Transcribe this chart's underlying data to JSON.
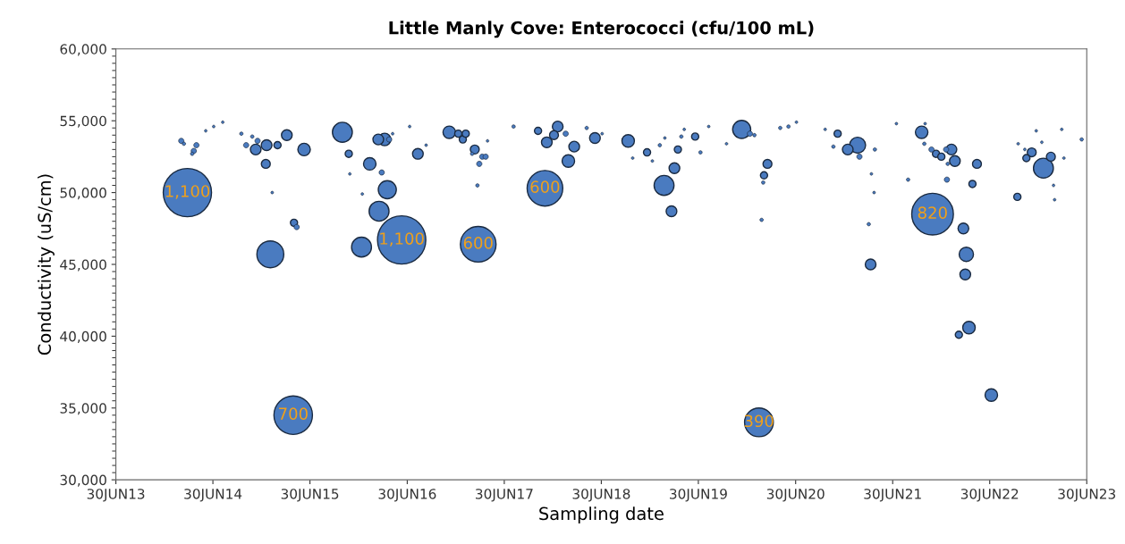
{
  "chart_data": {
    "type": "bubble",
    "title": "Little Manly Cove: Enterococci (cfu/100 mL)",
    "xlabel": "Sampling date",
    "ylabel": "Conductivity (uS/cm)",
    "xlim": [
      "2013-06-30",
      "2023-06-30"
    ],
    "xticks": [
      {
        "value": "2013-06-30",
        "label": "30JUN13"
      },
      {
        "value": "2014-06-30",
        "label": "30JUN14"
      },
      {
        "value": "2015-06-30",
        "label": "30JUN15"
      },
      {
        "value": "2016-06-30",
        "label": "30JUN16"
      },
      {
        "value": "2017-06-30",
        "label": "30JUN17"
      },
      {
        "value": "2018-06-30",
        "label": "30JUN18"
      },
      {
        "value": "2019-06-30",
        "label": "30JUN19"
      },
      {
        "value": "2020-06-30",
        "label": "30JUN20"
      },
      {
        "value": "2021-06-30",
        "label": "30JUN21"
      },
      {
        "value": "2022-06-30",
        "label": "30JUN22"
      },
      {
        "value": "2023-06-30",
        "label": "30JUN23"
      }
    ],
    "ylim": [
      30000,
      60000
    ],
    "yticks": [
      {
        "value": 30000,
        "label": "30,000"
      },
      {
        "value": 35000,
        "label": "35,000"
      },
      {
        "value": 40000,
        "label": "40,000"
      },
      {
        "value": 45000,
        "label": "45,000"
      },
      {
        "value": 50000,
        "label": "50,000"
      },
      {
        "value": 55000,
        "label": "55,000"
      },
      {
        "value": 60000,
        "label": "60,000"
      }
    ],
    "grid": false,
    "annotations": [
      {
        "text": "1,100",
        "x": "2014-03-26",
        "y": 50000
      },
      {
        "text": "700",
        "x": "2015-04-28",
        "y": 34500
      },
      {
        "text": "1,100",
        "x": "2016-06-09",
        "y": 46700
      },
      {
        "text": "600",
        "x": "2017-03-24",
        "y": 46400
      },
      {
        "text": "600",
        "x": "2017-11-30",
        "y": 50300
      },
      {
        "text": "390",
        "x": "2020-02-13",
        "y": 34000
      },
      {
        "text": "820",
        "x": "2021-11-27",
        "y": 48500
      }
    ],
    "series": [
      {
        "color": "#4a7bc0",
        "x": [
          "2014-03-03",
          "2014-03-13",
          "2014-03-26",
          "2014-04-19",
          "2014-04-13",
          "2014-04-29",
          "2014-06-03",
          "2014-07-03",
          "2014-08-06",
          "2014-10-15",
          "2014-11-02",
          "2014-11-25",
          "2014-12-08",
          "2014-12-15",
          "2015-01-15",
          "2015-01-18",
          "2015-02-01",
          "2015-02-08",
          "2015-02-28",
          "2015-04-04",
          "2015-04-28",
          "2015-05-01",
          "2015-05-11",
          "2015-06-08",
          "2015-10-30",
          "2015-11-23",
          "2015-11-27",
          "2016-01-10",
          "2016-01-13",
          "2016-02-10",
          "2016-03-26",
          "2016-04-16",
          "2016-03-16",
          "2016-03-13",
          "2016-04-06",
          "2016-04-23",
          "2016-05-06",
          "2016-06-09",
          "2016-07-09",
          "2016-08-09",
          "2016-09-09",
          "2016-12-05",
          "2017-01-08",
          "2017-01-25",
          "2017-02-05",
          "2017-03-11",
          "2017-03-01",
          "2017-04-08",
          "2017-04-21",
          "2017-03-28",
          "2017-03-21",
          "2017-04-28",
          "2017-03-24",
          "2017-08-04",
          "2017-11-04",
          "2017-11-30",
          "2018-01-17",
          "2018-01-03",
          "2017-12-07",
          "2018-02-16",
          "2018-03-20",
          "2018-02-26",
          "2018-05-06",
          "2018-06-06",
          "2018-07-03",
          "2018-10-09",
          "2018-10-26",
          "2018-12-19",
          "2019-01-08",
          "2019-02-05",
          "2019-02-21",
          "2019-02-24",
          "2019-03-21",
          "2019-04-01",
          "2019-04-14",
          "2019-04-27",
          "2019-05-08",
          "2019-06-18",
          "2019-07-08",
          "2019-08-08",
          "2019-10-14",
          "2019-12-10",
          "2020-01-10",
          "2020-01-27",
          "2020-02-13",
          "2020-02-23",
          "2020-02-29",
          "2020-03-03",
          "2020-03-16",
          "2020-05-03",
          "2020-06-03",
          "2020-07-03",
          "2020-10-19",
          "2020-11-19",
          "2020-12-05",
          "2021-01-12",
          "2021-02-18",
          "2021-02-25",
          "2021-04-01",
          "2021-04-08",
          "2021-04-11",
          "2021-04-21",
          "2021-04-24",
          "2021-07-14",
          "2021-08-27",
          "2021-10-17",
          "2021-10-27",
          "2021-10-30",
          "2021-11-23",
          "2021-11-27",
          "2021-12-10",
          "2021-12-30",
          "2022-01-17",
          "2022-01-20",
          "2022-01-23",
          "2022-02-06",
          "2022-02-19",
          "2022-03-06",
          "2022-03-23",
          "2022-03-30",
          "2022-04-03",
          "2022-04-13",
          "2022-04-26",
          "2022-05-13",
          "2022-07-06",
          "2022-10-12",
          "2022-10-15",
          "2022-11-09",
          "2022-11-15",
          "2022-12-05",
          "2022-12-22",
          "2023-01-12",
          "2023-01-18",
          "2023-02-15",
          "2023-02-25",
          "2023-03-01",
          "2023-03-28",
          "2023-04-05",
          "2023-06-11"
        ],
        "values": [
          53600,
          53400,
          50000,
          52900,
          52700,
          53300,
          54300,
          54600,
          54900,
          54100,
          53300,
          53900,
          53000,
          53600,
          52000,
          53300,
          45700,
          50000,
          53300,
          54000,
          34500,
          47900,
          47600,
          53000,
          54200,
          52700,
          51300,
          46200,
          49900,
          52000,
          51400,
          50200,
          48700,
          53700,
          53700,
          53700,
          54100,
          46700,
          54600,
          52700,
          53300,
          54200,
          54100,
          53700,
          54100,
          53000,
          52700,
          52500,
          52500,
          52000,
          50500,
          53600,
          46400,
          54600,
          54300,
          50300,
          54600,
          54000,
          53500,
          54100,
          53200,
          52200,
          54500,
          53800,
          54100,
          53600,
          52400,
          52800,
          52200,
          53300,
          50500,
          53800,
          48700,
          51700,
          53000,
          53900,
          54400,
          53900,
          52800,
          54600,
          53400,
          54400,
          54100,
          54000,
          34000,
          48100,
          50700,
          51200,
          52000,
          54500,
          54600,
          54900,
          54400,
          53200,
          54100,
          53000,
          53300,
          52500,
          47800,
          45000,
          51300,
          50000,
          53000,
          54800,
          50900,
          54200,
          53400,
          54800,
          53000,
          48500,
          52700,
          52500,
          53000,
          50900,
          52000,
          53000,
          52200,
          40100,
          47500,
          44300,
          45700,
          40600,
          50600,
          52000,
          35900,
          49700,
          53400,
          53000,
          52400,
          52800,
          54300,
          53500,
          51700,
          52500,
          50500,
          49500,
          54400,
          52400,
          53700
        ],
        "sizes": [
          0.012,
          0.005,
          1,
          0.012,
          0.005,
          0.012,
          0.003,
          0.003,
          0.003,
          0.005,
          0.012,
          0.005,
          0.049,
          0.012,
          0.034,
          0.049,
          0.31,
          0.003,
          0.022,
          0.049,
          0.636,
          0.022,
          0.012,
          0.067,
          0.17,
          0.022,
          0.003,
          0.17,
          0.003,
          0.067,
          0.012,
          0.14,
          0.17,
          0.049,
          0.067,
          0.012,
          0.003,
          1,
          0.003,
          0.049,
          0.003,
          0.067,
          0.022,
          0.022,
          0.022,
          0.034,
          0.005,
          0.012,
          0.012,
          0.012,
          0.005,
          0.003,
          0.545,
          0.005,
          0.022,
          0.545,
          0.049,
          0.034,
          0.049,
          0.012,
          0.049,
          0.067,
          0.005,
          0.049,
          0.003,
          0.067,
          0.003,
          0.022,
          0.003,
          0.005,
          0.17,
          0.003,
          0.049,
          0.049,
          0.022,
          0.005,
          0.003,
          0.022,
          0.005,
          0.003,
          0.003,
          0.14,
          0.012,
          0.005,
          0.355,
          0.005,
          0.005,
          0.022,
          0.034,
          0.005,
          0.005,
          0.003,
          0.003,
          0.005,
          0.022,
          0.049,
          0.11,
          0.012,
          0.005,
          0.049,
          0.003,
          0.003,
          0.005,
          0.003,
          0.005,
          0.067,
          0.005,
          0.003,
          0.012,
          0.745,
          0.022,
          0.022,
          0.012,
          0.012,
          0.005,
          0.049,
          0.049,
          0.022,
          0.049,
          0.049,
          0.088,
          0.067,
          0.022,
          0.034,
          0.067,
          0.022,
          0.003,
          0.003,
          0.022,
          0.034,
          0.003,
          0.003,
          0.17,
          0.034,
          0.003,
          0.003,
          0.003,
          0.003,
          0.005
        ],
        "name": null
      }
    ]
  }
}
